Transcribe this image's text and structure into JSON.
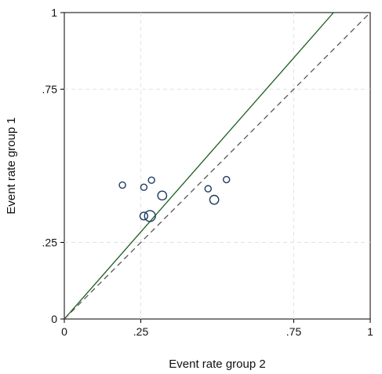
{
  "chart_data": {
    "type": "scatter",
    "xlabel": "Event rate group 2",
    "ylabel": "Event rate group 1",
    "xlim": [
      0,
      1
    ],
    "ylim": [
      0,
      1
    ],
    "x_ticks": [
      {
        "value": 0,
        "label": "0"
      },
      {
        "value": 0.25,
        "label": ".25"
      },
      {
        "value": 0.75,
        "label": ".75"
      },
      {
        "value": 1,
        "label": "1"
      }
    ],
    "y_ticks": [
      {
        "value": 0,
        "label": "0"
      },
      {
        "value": 0.25,
        "label": ".25"
      },
      {
        "value": 0.75,
        "label": ".75"
      },
      {
        "value": 1,
        "label": "1"
      }
    ],
    "gridlines_x": [
      0.25,
      0.75
    ],
    "gridlines_y": [
      0.25,
      0.75
    ],
    "grid": true,
    "points": [
      {
        "x": 0.19,
        "y": 0.437,
        "weight": 1
      },
      {
        "x": 0.26,
        "y": 0.43,
        "weight": 1
      },
      {
        "x": 0.285,
        "y": 0.453,
        "weight": 1
      },
      {
        "x": 0.32,
        "y": 0.403,
        "weight": 2
      },
      {
        "x": 0.26,
        "y": 0.336,
        "weight": 1.5
      },
      {
        "x": 0.28,
        "y": 0.336,
        "weight": 3
      },
      {
        "x": 0.47,
        "y": 0.425,
        "weight": 1
      },
      {
        "x": 0.49,
        "y": 0.389,
        "weight": 2
      },
      {
        "x": 0.53,
        "y": 0.455,
        "weight": 1
      }
    ],
    "reference_lines": [
      {
        "name": "fitted",
        "x": [
          0,
          0.88
        ],
        "y": [
          0,
          1
        ],
        "style": "solid",
        "color": "#1b5e20"
      },
      {
        "name": "equality",
        "x": [
          0,
          1
        ],
        "y": [
          0,
          1
        ],
        "style": "dashed",
        "color": "#555555"
      }
    ],
    "marker_color": "#1f3a5f"
  }
}
